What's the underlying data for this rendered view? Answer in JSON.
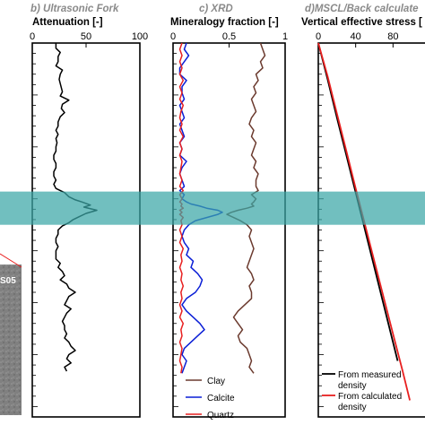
{
  "core_photo": {
    "label": "S05"
  },
  "highlight": {
    "color": "#3aa6a6",
    "from": 14.3,
    "to": 17.5
  },
  "depth_range": [
    0,
    36
  ],
  "chart_data": [
    {
      "type": "line",
      "title": "b) Ultrasonic Fork",
      "xlabel": "Attenuation [-]",
      "xlim": [
        0,
        100
      ],
      "xticks": [
        0,
        50,
        100
      ],
      "series": [
        {
          "color": "#000000",
          "x": [
            22,
            22,
            26,
            24,
            24,
            22,
            28,
            26,
            25,
            26,
            27,
            28,
            26,
            34,
            28,
            27,
            30,
            26,
            24,
            24,
            22,
            24,
            22,
            23,
            22,
            22,
            20,
            20,
            22,
            22,
            20,
            20,
            22,
            20,
            22,
            30,
            34,
            40,
            46,
            54,
            48,
            60,
            50,
            44,
            38,
            34,
            28,
            24,
            24,
            22,
            22,
            24,
            22,
            22,
            22,
            26,
            24,
            28,
            30,
            26,
            32,
            34,
            40,
            34,
            32,
            30,
            36,
            32,
            30,
            28,
            30,
            30,
            32,
            30,
            34,
            36,
            40,
            34,
            32,
            36,
            30,
            32
          ],
          "y": [
            0,
            0.5,
            0.9,
            1.3,
            1.8,
            2.2,
            2.6,
            3.0,
            3.5,
            3.9,
            4.3,
            4.7,
            5.1,
            5.5,
            5.9,
            6.3,
            6.7,
            7.1,
            7.6,
            8.0,
            8.4,
            8.8,
            9.2,
            9.6,
            10.0,
            10.4,
            10.8,
            11.2,
            11.6,
            12.0,
            12.4,
            12.8,
            13.2,
            13.6,
            14.0,
            14.4,
            14.8,
            15.1,
            15.3,
            15.6,
            15.8,
            16.1,
            16.4,
            16.7,
            17.0,
            17.3,
            17.6,
            18.0,
            18.4,
            18.8,
            19.2,
            19.6,
            20.0,
            20.4,
            20.8,
            21.2,
            21.6,
            22.0,
            22.4,
            22.8,
            23.2,
            23.6,
            24.0,
            24.4,
            24.8,
            25.2,
            25.6,
            26.0,
            26.4,
            26.8,
            27.2,
            27.6,
            28.0,
            28.4,
            28.8,
            29.2,
            29.6,
            30.0,
            30.4,
            30.8,
            31.2,
            31.6
          ]
        }
      ]
    },
    {
      "type": "line",
      "title": "c) XRD",
      "xlabel": "Mineralogy fraction [-]",
      "xlim": [
        0,
        1
      ],
      "xticks": [
        0,
        0.5,
        1
      ],
      "legend": "bottom-right",
      "series": [
        {
          "name": "Clay",
          "color": "#6b3a2e",
          "x": [
            0.78,
            0.8,
            0.82,
            0.78,
            0.8,
            0.74,
            0.76,
            0.72,
            0.74,
            0.7,
            0.72,
            0.74,
            0.7,
            0.68,
            0.72,
            0.7,
            0.74,
            0.72,
            0.7,
            0.74,
            0.72,
            0.76,
            0.74,
            0.74,
            0.76,
            0.7,
            0.74,
            0.72,
            0.7,
            0.72,
            0.66,
            0.58,
            0.52,
            0.48,
            0.54,
            0.6,
            0.66,
            0.7,
            0.68,
            0.7,
            0.72,
            0.7,
            0.68,
            0.66,
            0.7,
            0.72,
            0.68,
            0.7,
            0.7,
            0.64,
            0.58,
            0.54,
            0.58,
            0.62,
            0.58,
            0.6,
            0.66,
            0.68,
            0.7,
            0.68,
            0.72
          ],
          "y": [
            0,
            0.6,
            1.2,
            1.8,
            2.4,
            3.0,
            3.6,
            4.2,
            4.8,
            5.4,
            6.0,
            6.6,
            7.2,
            7.8,
            8.4,
            9.0,
            9.6,
            10.2,
            10.8,
            11.4,
            12.0,
            12.6,
            13.2,
            13.8,
            14.2,
            14.6,
            15.0,
            15.3,
            15.5,
            15.7,
            15.9,
            16.1,
            16.3,
            16.5,
            16.8,
            17.1,
            17.5,
            18.0,
            18.6,
            19.2,
            19.8,
            20.4,
            21.0,
            21.6,
            22.2,
            22.8,
            23.4,
            24.0,
            24.6,
            25.2,
            25.8,
            26.4,
            27.0,
            27.6,
            28.2,
            28.8,
            29.4,
            30.0,
            30.6,
            31.2,
            31.8
          ]
        },
        {
          "name": "Calcite",
          "color": "#0a1ed6",
          "x": [
            0.12,
            0.1,
            0.14,
            0.1,
            0.06,
            0.06,
            0.12,
            0.08,
            0.08,
            0.1,
            0.06,
            0.08,
            0.1,
            0.06,
            0.08,
            0.1,
            0.06,
            0.08,
            0.06,
            0.12,
            0.08,
            0.06,
            0.08,
            0.1,
            0.06,
            0.1,
            0.08,
            0.12,
            0.16,
            0.24,
            0.3,
            0.4,
            0.44,
            0.4,
            0.3,
            0.2,
            0.14,
            0.1,
            0.08,
            0.1,
            0.14,
            0.12,
            0.18,
            0.16,
            0.22,
            0.26,
            0.24,
            0.2,
            0.12,
            0.08,
            0.12,
            0.18,
            0.24,
            0.28,
            0.22,
            0.16,
            0.1,
            0.08,
            0.12,
            0.1,
            0.08
          ],
          "y": [
            0,
            0.6,
            1.2,
            1.8,
            2.4,
            3.0,
            3.6,
            4.2,
            4.8,
            5.4,
            6.0,
            6.6,
            7.2,
            7.8,
            8.4,
            9.0,
            9.6,
            10.2,
            10.8,
            11.4,
            12.0,
            12.6,
            13.2,
            13.8,
            14.2,
            14.6,
            15.0,
            15.3,
            15.5,
            15.7,
            15.9,
            16.1,
            16.3,
            16.5,
            16.8,
            17.1,
            17.5,
            18.0,
            18.6,
            19.2,
            19.8,
            20.4,
            21.0,
            21.6,
            22.2,
            22.8,
            23.4,
            24.0,
            24.6,
            25.2,
            25.8,
            26.4,
            27.0,
            27.6,
            28.2,
            28.8,
            29.4,
            30.0,
            30.6,
            31.2,
            31.8
          ]
        },
        {
          "name": "Quartz",
          "color": "#e82020",
          "x": [
            0.08,
            0.06,
            0.08,
            0.06,
            0.08,
            0.06,
            0.09,
            0.06,
            0.08,
            0.06,
            0.09,
            0.07,
            0.06,
            0.08,
            0.06,
            0.09,
            0.06,
            0.08,
            0.06,
            0.08,
            0.07,
            0.06,
            0.08,
            0.06,
            0.09,
            0.06,
            0.08,
            0.06,
            0.08,
            0.07,
            0.09,
            0.06,
            0.08,
            0.06,
            0.09,
            0.07,
            0.08,
            0.06,
            0.08,
            0.06,
            0.09,
            0.07,
            0.08,
            0.06,
            0.08,
            0.07,
            0.09,
            0.07,
            0.08,
            0.06,
            0.08,
            0.06,
            0.09,
            0.07,
            0.08,
            0.06,
            0.08,
            0.07,
            0.06,
            0.08,
            0.07
          ],
          "y": [
            0,
            0.6,
            1.2,
            1.8,
            2.4,
            3.0,
            3.6,
            4.2,
            4.8,
            5.4,
            6.0,
            6.6,
            7.2,
            7.8,
            8.4,
            9.0,
            9.6,
            10.2,
            10.8,
            11.4,
            12.0,
            12.6,
            13.2,
            13.8,
            14.2,
            14.6,
            15.0,
            15.3,
            15.5,
            15.7,
            15.9,
            16.1,
            16.3,
            16.5,
            16.8,
            17.1,
            17.5,
            18.0,
            18.6,
            19.2,
            19.8,
            20.4,
            21.0,
            21.6,
            22.2,
            22.8,
            23.4,
            24.0,
            24.6,
            25.2,
            25.8,
            26.4,
            27.0,
            27.6,
            28.2,
            28.8,
            29.4,
            30.0,
            30.6,
            31.2,
            31.8
          ]
        }
      ]
    },
    {
      "type": "line",
      "title": "d)MSCL/Back calculate",
      "xlabel": "Vertical effective stress [",
      "xlim": [
        0,
        120
      ],
      "xticks": [
        0,
        40,
        80
      ],
      "xticklabels": [
        "0",
        "40",
        "80"
      ],
      "legend": "bottom-right",
      "series": [
        {
          "name": "From measured density",
          "color": "#000000",
          "x": [
            0,
            10,
            20,
            30,
            40,
            50,
            60,
            70,
            80,
            85
          ],
          "y": [
            0,
            3.5,
            7.2,
            10.8,
            14.4,
            18.0,
            21.6,
            25.2,
            28.8,
            30.6
          ]
        },
        {
          "name": "From calculated density",
          "color": "#e82020",
          "x": [
            0,
            10,
            20,
            30,
            40,
            50,
            60,
            70,
            80,
            90,
            98
          ],
          "y": [
            0,
            3.2,
            6.8,
            10.4,
            14.0,
            17.5,
            21.0,
            24.5,
            28.0,
            31.5,
            34.4
          ]
        }
      ]
    }
  ]
}
